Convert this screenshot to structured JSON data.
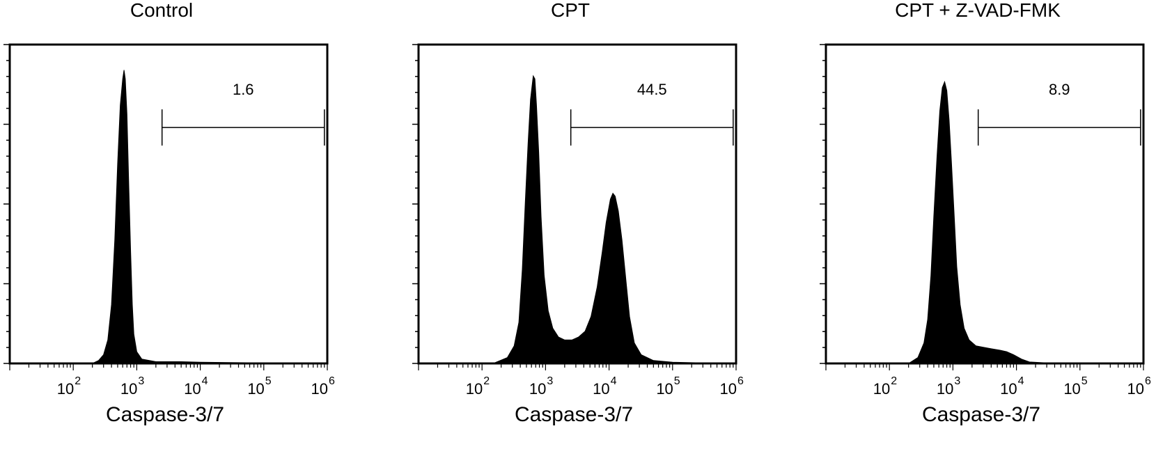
{
  "chart_data": [
    {
      "type": "histogram",
      "title": "Control",
      "xlabel": "Caspase-3/7",
      "xscale": "log",
      "xlim": [
        10,
        1000000
      ],
      "xticks": [
        {
          "base": "10",
          "exp": "2"
        },
        {
          "base": "10",
          "exp": "3"
        },
        {
          "base": "10",
          "exp": "4"
        },
        {
          "base": "10",
          "exp": "5"
        },
        {
          "base": "10",
          "exp": "6"
        }
      ],
      "ylim": [
        0,
        1
      ],
      "gate": {
        "x_start": 2500,
        "x_end": 900000,
        "level": 0.74,
        "label": "1.6"
      },
      "distribution": [
        [
          200,
          0.0
        ],
        [
          250,
          0.01
        ],
        [
          300,
          0.03
        ],
        [
          350,
          0.08
        ],
        [
          400,
          0.2
        ],
        [
          450,
          0.42
        ],
        [
          500,
          0.68
        ],
        [
          550,
          0.88
        ],
        [
          600,
          0.97
        ],
        [
          630,
          1.0
        ],
        [
          660,
          0.97
        ],
        [
          700,
          0.85
        ],
        [
          750,
          0.6
        ],
        [
          800,
          0.38
        ],
        [
          850,
          0.2
        ],
        [
          900,
          0.1
        ],
        [
          1000,
          0.04
        ],
        [
          1200,
          0.015
        ],
        [
          2000,
          0.006
        ],
        [
          5000,
          0.006
        ],
        [
          10000,
          0.004
        ],
        [
          30000,
          0.003
        ],
        [
          100000,
          0.002
        ],
        [
          900000,
          0.0
        ]
      ]
    },
    {
      "type": "histogram",
      "title": "CPT",
      "xlabel": "Caspase-3/7",
      "xscale": "log",
      "xlim": [
        10,
        1000000
      ],
      "xticks": [
        {
          "base": "10",
          "exp": "2"
        },
        {
          "base": "10",
          "exp": "3"
        },
        {
          "base": "10",
          "exp": "4"
        },
        {
          "base": "10",
          "exp": "5"
        },
        {
          "base": "10",
          "exp": "6"
        }
      ],
      "ylim": [
        0,
        1
      ],
      "gate": {
        "x_start": 2500,
        "x_end": 900000,
        "level": 0.74,
        "label": "44.5"
      },
      "distribution": [
        [
          150,
          0.0
        ],
        [
          250,
          0.02
        ],
        [
          320,
          0.06
        ],
        [
          380,
          0.14
        ],
        [
          430,
          0.32
        ],
        [
          480,
          0.55
        ],
        [
          530,
          0.75
        ],
        [
          580,
          0.9
        ],
        [
          640,
          0.98
        ],
        [
          680,
          0.97
        ],
        [
          720,
          0.88
        ],
        [
          780,
          0.72
        ],
        [
          850,
          0.5
        ],
        [
          950,
          0.3
        ],
        [
          1100,
          0.18
        ],
        [
          1300,
          0.12
        ],
        [
          1600,
          0.09
        ],
        [
          2000,
          0.08
        ],
        [
          2600,
          0.08
        ],
        [
          3300,
          0.09
        ],
        [
          4200,
          0.11
        ],
        [
          5200,
          0.16
        ],
        [
          6500,
          0.26
        ],
        [
          7800,
          0.38
        ],
        [
          9000,
          0.48
        ],
        [
          10500,
          0.56
        ],
        [
          11500,
          0.58
        ],
        [
          12500,
          0.57
        ],
        [
          14000,
          0.52
        ],
        [
          16000,
          0.42
        ],
        [
          18500,
          0.28
        ],
        [
          21000,
          0.16
        ],
        [
          25000,
          0.07
        ],
        [
          32000,
          0.03
        ],
        [
          50000,
          0.01
        ],
        [
          100000,
          0.004
        ],
        [
          300000,
          0.002
        ],
        [
          900000,
          0.0
        ]
      ]
    },
    {
      "type": "histogram",
      "title": "CPT + Z-VAD-FMK",
      "xlabel": "Caspase-3/7",
      "xscale": "log",
      "xlim": [
        10,
        1000000
      ],
      "xticks": [
        {
          "base": "10",
          "exp": "2"
        },
        {
          "base": "10",
          "exp": "3"
        },
        {
          "base": "10",
          "exp": "4"
        },
        {
          "base": "10",
          "exp": "5"
        },
        {
          "base": "10",
          "exp": "6"
        }
      ],
      "ylim": [
        0,
        1
      ],
      "gate": {
        "x_start": 2500,
        "x_end": 900000,
        "level": 0.74,
        "label": "8.9"
      },
      "distribution": [
        [
          200,
          0.0
        ],
        [
          280,
          0.02
        ],
        [
          350,
          0.07
        ],
        [
          400,
          0.15
        ],
        [
          450,
          0.3
        ],
        [
          500,
          0.5
        ],
        [
          560,
          0.7
        ],
        [
          620,
          0.86
        ],
        [
          680,
          0.94
        ],
        [
          740,
          0.96
        ],
        [
          800,
          0.93
        ],
        [
          870,
          0.83
        ],
        [
          950,
          0.68
        ],
        [
          1050,
          0.5
        ],
        [
          1150,
          0.33
        ],
        [
          1300,
          0.2
        ],
        [
          1500,
          0.12
        ],
        [
          1800,
          0.08
        ],
        [
          2300,
          0.06
        ],
        [
          3000,
          0.055
        ],
        [
          4000,
          0.05
        ],
        [
          5500,
          0.045
        ],
        [
          7000,
          0.04
        ],
        [
          9000,
          0.03
        ],
        [
          12000,
          0.015
        ],
        [
          16000,
          0.005
        ],
        [
          30000,
          0.002
        ],
        [
          100000,
          0.001
        ],
        [
          900000,
          0.0
        ]
      ]
    }
  ]
}
